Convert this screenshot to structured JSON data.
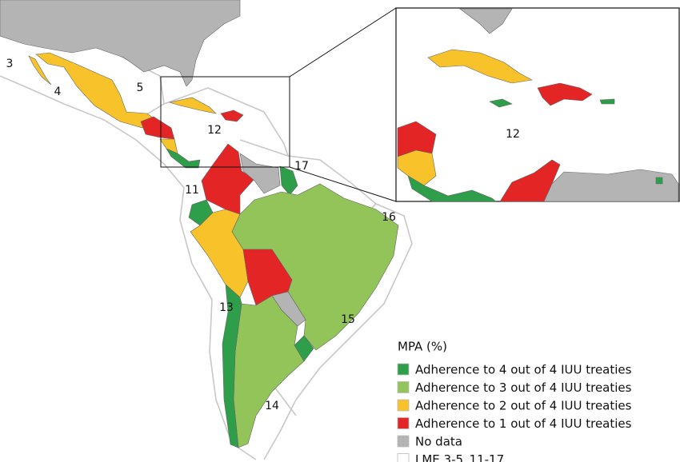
{
  "map": {
    "lme_labels": [
      "3",
      "4",
      "5",
      "11",
      "12",
      "13",
      "14",
      "15",
      "16",
      "17"
    ],
    "legend": {
      "title": "MPA (%)",
      "items": [
        {
          "label": "Adherence to 4 out of 4 IUU treaties",
          "color": "#2e9e4a"
        },
        {
          "label": "Adherence to 3 out of 4 IUU treaties",
          "color": "#92c45a"
        },
        {
          "label": "Adherence to 2 out of 4 IUU treaties",
          "color": "#f8c22a"
        },
        {
          "label": "Adherence to 1 out of 4 IUU treaties",
          "color": "#e32526"
        },
        {
          "label": "No data",
          "color": "#b4b4b4"
        },
        {
          "label": "LME 3-5_11-17",
          "color": "#ffffff"
        }
      ]
    }
  }
}
